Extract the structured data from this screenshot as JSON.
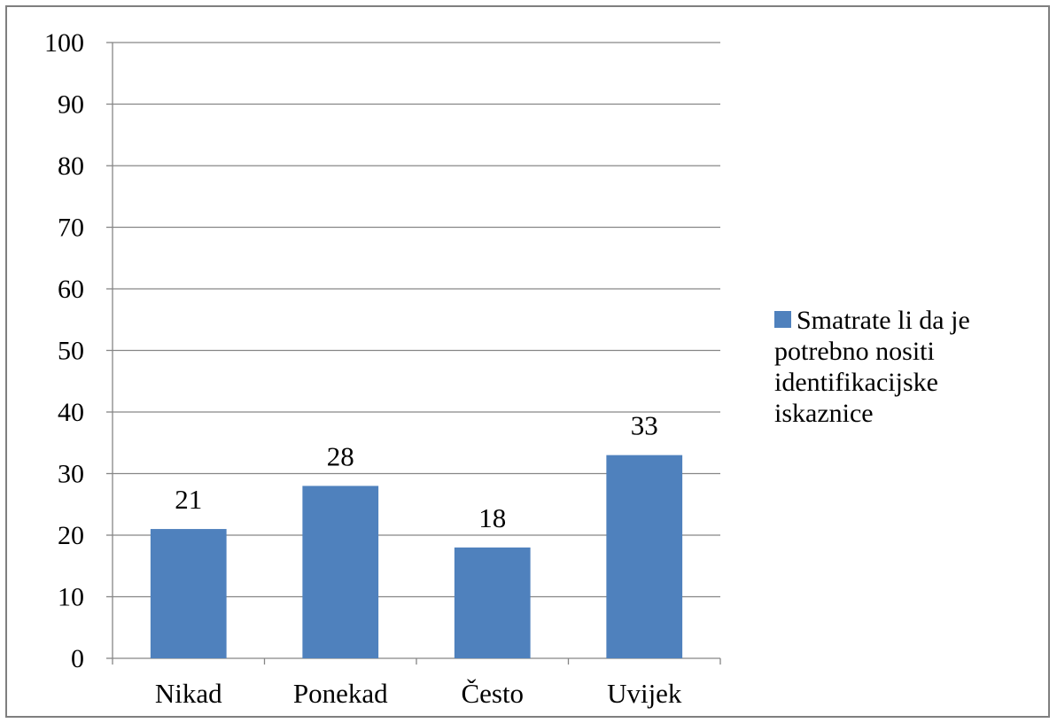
{
  "chart_data": {
    "type": "bar",
    "categories": [
      "Nikad",
      "Ponekad",
      "Često",
      "Uvijek"
    ],
    "series": [
      {
        "name": "Smatrate li da je potrebno nositi identifikacijske iskaznice",
        "values": [
          21,
          28,
          18,
          33
        ],
        "color": "#4f81bd"
      }
    ],
    "data_labels": [
      "21",
      "28",
      "18",
      "33"
    ],
    "ylim": [
      0,
      100
    ],
    "yticks": [
      "0",
      "10",
      "20",
      "30",
      "40",
      "50",
      "60",
      "70",
      "80",
      "90",
      "100"
    ],
    "grid": true,
    "legend": "right"
  }
}
